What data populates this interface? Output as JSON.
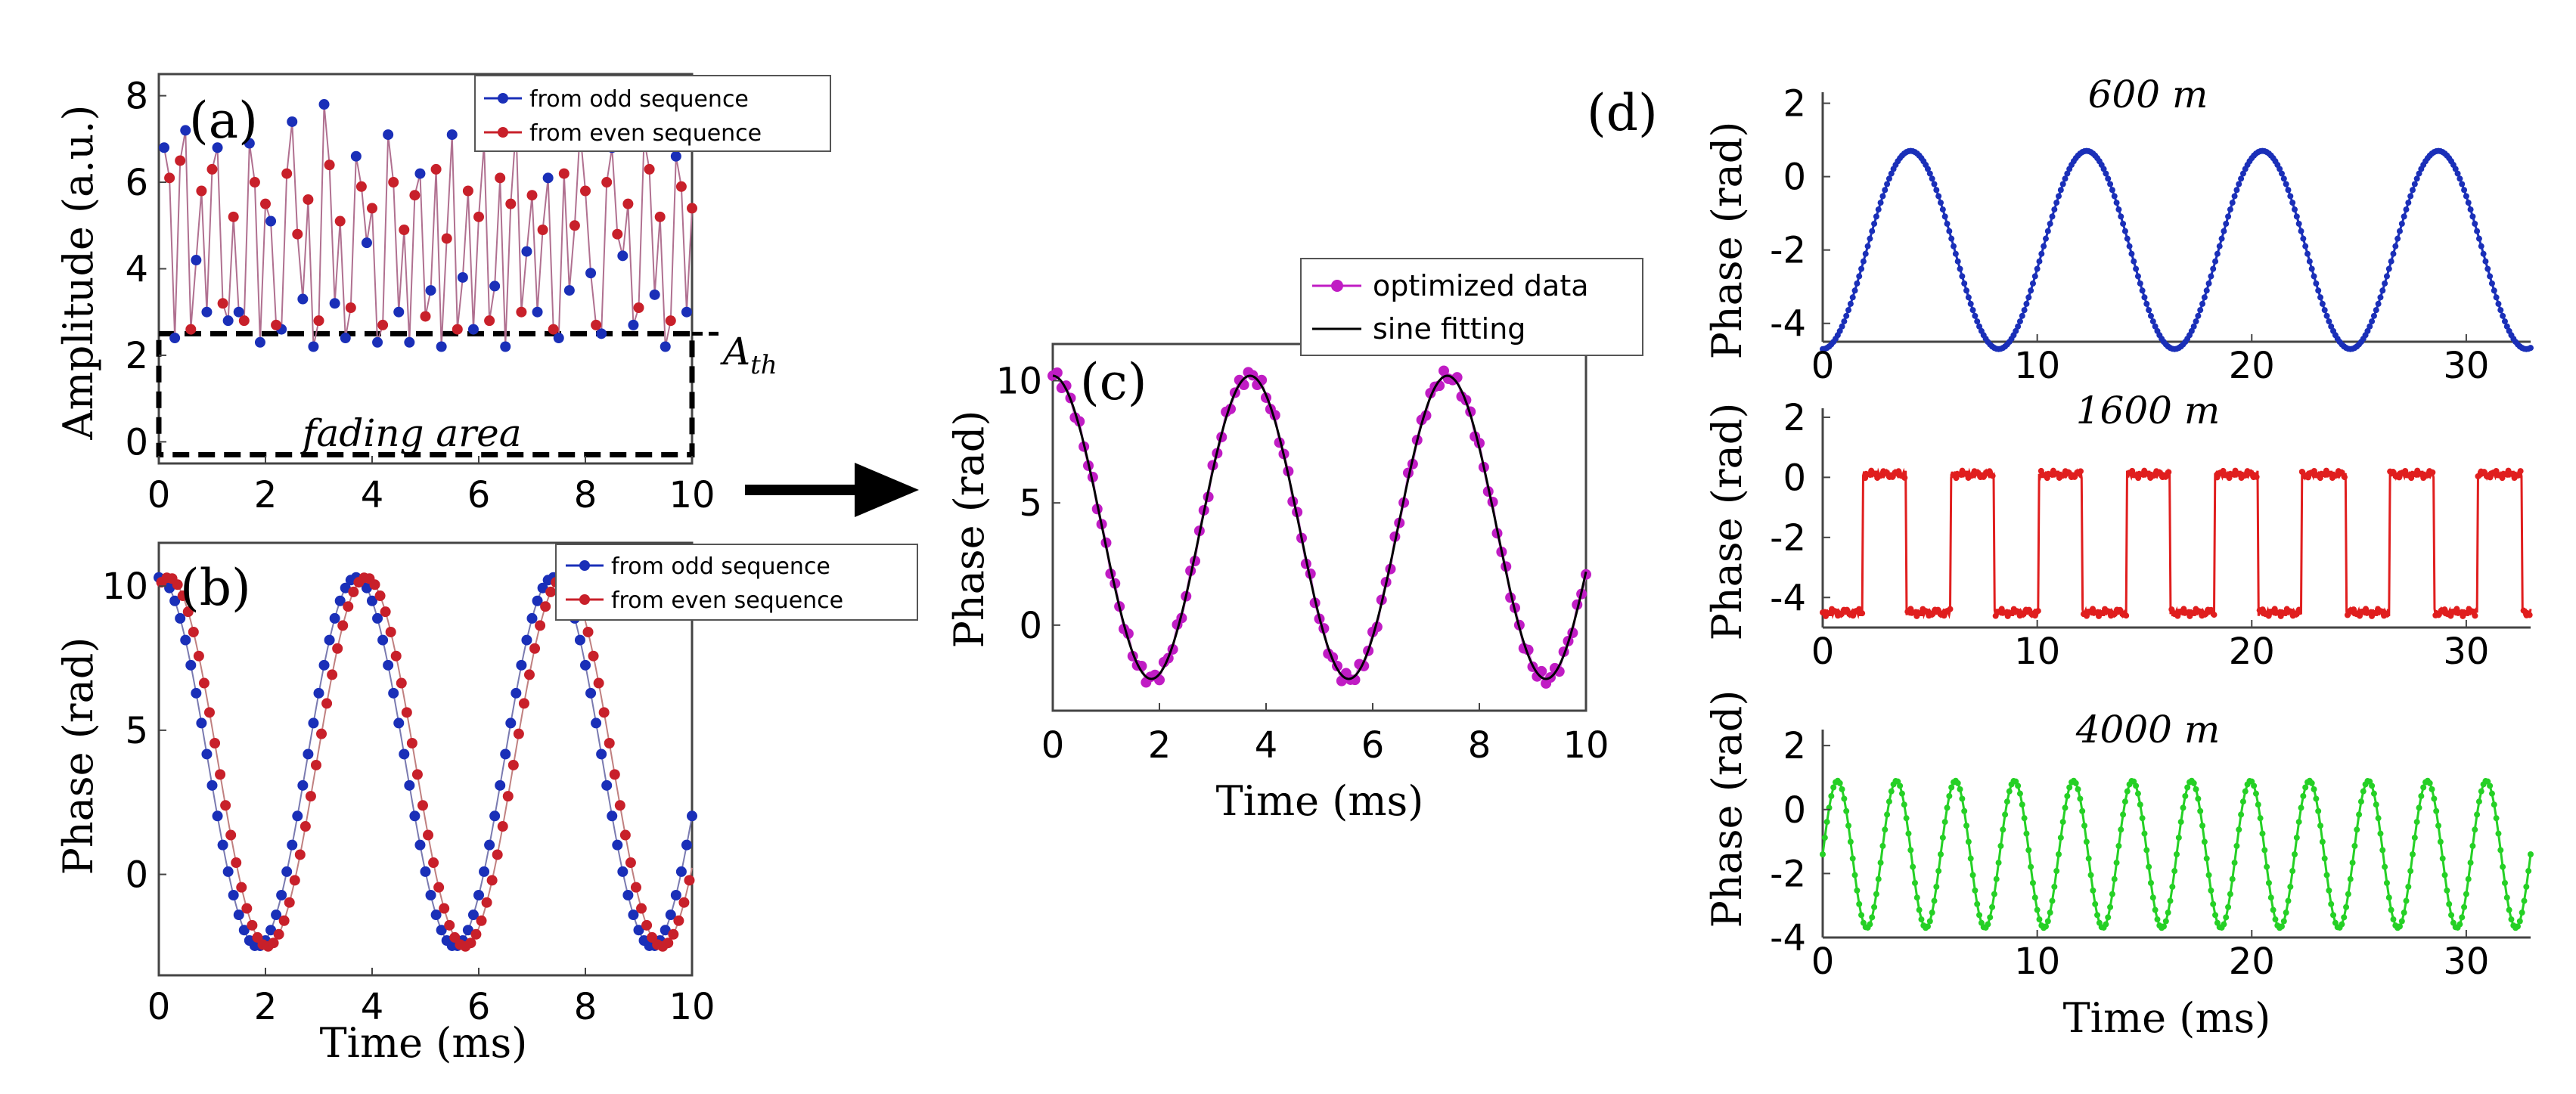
{
  "chart_data": [
    {
      "panel": "(a)",
      "type": "line",
      "xlabel": "",
      "ylabel": "Amplitude (a.u.)",
      "xlim": [
        0,
        10
      ],
      "ylim": [
        -0.5,
        8.5
      ],
      "xticks": [
        "0",
        "2",
        "4",
        "6",
        "8",
        "10"
      ],
      "yticks": [
        "0",
        "2",
        "4",
        "6",
        "8"
      ],
      "threshold": 2.5,
      "threshold_label": "A",
      "threshold_label_sub": "th",
      "region_label": "fading area",
      "series": [
        {
          "name": "from odd sequence",
          "color": "#1a2fb8",
          "x": [
            0.1,
            0.3,
            0.5,
            0.7,
            0.9,
            1.1,
            1.3,
            1.5,
            1.7,
            1.9,
            2.1,
            2.3,
            2.5,
            2.7,
            2.9,
            3.1,
            3.3,
            3.5,
            3.7,
            3.9,
            4.1,
            4.3,
            4.5,
            4.7,
            4.9,
            5.1,
            5.3,
            5.5,
            5.7,
            5.9,
            6.1,
            6.3,
            6.5,
            6.7,
            6.9,
            7.1,
            7.3,
            7.5,
            7.7,
            7.9,
            8.1,
            8.3,
            8.5,
            8.7,
            8.9,
            9.1,
            9.3,
            9.5,
            9.7,
            9.9
          ],
          "values": [
            6.8,
            2.4,
            7.2,
            4.2,
            3.0,
            6.8,
            2.8,
            3.0,
            6.9,
            2.3,
            5.1,
            2.6,
            7.4,
            3.3,
            2.2,
            7.8,
            3.2,
            2.4,
            6.6,
            4.6,
            2.3,
            7.1,
            3.0,
            2.3,
            6.2,
            3.5,
            2.2,
            7.1,
            3.8,
            2.6,
            6.9,
            3.6,
            2.2,
            7.3,
            4.4,
            3.0,
            6.1,
            2.4,
            3.5,
            7.2,
            3.9,
            2.5,
            6.8,
            4.3,
            2.7,
            7.0,
            3.4,
            2.2,
            6.6,
            3.0
          ]
        },
        {
          "name": "from even sequence",
          "color": "#c8202a",
          "x": [
            0.2,
            0.4,
            0.6,
            0.8,
            1.0,
            1.2,
            1.4,
            1.6,
            1.8,
            2.0,
            2.2,
            2.4,
            2.6,
            2.8,
            3.0,
            3.2,
            3.4,
            3.6,
            3.8,
            4.0,
            4.2,
            4.4,
            4.6,
            4.8,
            5.0,
            5.2,
            5.4,
            5.6,
            5.8,
            6.0,
            6.2,
            6.4,
            6.6,
            6.8,
            7.0,
            7.2,
            7.4,
            7.6,
            7.8,
            8.0,
            8.2,
            8.4,
            8.6,
            8.8,
            9.0,
            9.2,
            9.4,
            9.6,
            9.8,
            10.0
          ],
          "values": [
            6.1,
            6.5,
            2.6,
            5.8,
            6.3,
            3.2,
            5.2,
            2.8,
            6.0,
            5.5,
            2.7,
            6.2,
            4.8,
            5.6,
            2.8,
            6.4,
            5.1,
            3.1,
            5.9,
            5.4,
            2.7,
            6.0,
            4.9,
            5.7,
            2.9,
            6.3,
            4.7,
            2.6,
            5.8,
            5.2,
            2.8,
            6.1,
            5.5,
            3.0,
            5.7,
            4.9,
            2.6,
            6.2,
            5.0,
            5.8,
            2.7,
            6.0,
            4.8,
            5.5,
            3.1,
            6.3,
            5.2,
            2.8,
            5.9,
            5.4
          ]
        }
      ]
    },
    {
      "panel": "(b)",
      "type": "line",
      "xlabel": "Time (ms)",
      "ylabel": "Phase (rad)",
      "xlim": [
        0,
        10
      ],
      "ylim": [
        -3.5,
        11.5
      ],
      "xticks": [
        "0",
        "2",
        "4",
        "6",
        "8",
        "10"
      ],
      "yticks": [
        "0",
        "5",
        "10"
      ],
      "series": [
        {
          "name": "from odd sequence",
          "color": "#1a2fb8",
          "model": "sine",
          "amplitude": 6.4,
          "offset": 3.9,
          "period_ms": 3.7,
          "phase_deg": 90
        },
        {
          "name": "from even sequence",
          "color": "#c8202a",
          "model": "sine",
          "amplitude": 6.4,
          "offset": 3.9,
          "period_ms": 3.7,
          "phase_deg": 72
        }
      ]
    },
    {
      "panel": "(c)",
      "type": "line",
      "xlabel": "Time (ms)",
      "ylabel": "Phase (rad)",
      "xlim": [
        0,
        10
      ],
      "ylim": [
        -3.5,
        11.5
      ],
      "xticks": [
        "0",
        "2",
        "4",
        "6",
        "8",
        "10"
      ],
      "yticks": [
        "0",
        "5",
        "10"
      ],
      "series": [
        {
          "name": "optimized data",
          "color": "#c01cc4",
          "model": "sine",
          "amplitude": 6.2,
          "offset": 4.0,
          "period_ms": 3.7,
          "phase_deg": 90
        },
        {
          "name": "sine fitting",
          "color": "#000000",
          "model": "sine",
          "amplitude": 6.2,
          "offset": 4.0,
          "period_ms": 3.7,
          "phase_deg": 90
        }
      ]
    },
    {
      "panel": "(d)",
      "type": "line",
      "xlabel": "Time (ms)",
      "subplots": [
        {
          "title": "600 m",
          "ylabel": "Phase (rad)",
          "xlim": [
            0,
            33
          ],
          "ylim": [
            -4.5,
            2.3
          ],
          "xticks": [
            "0",
            "10",
            "20",
            "30"
          ],
          "yticks": [
            "2",
            "0",
            "-2",
            "-4"
          ],
          "color": "#1a2fb8",
          "waveform": "sine",
          "amplitude": 2.7,
          "offset": -2.0,
          "period_ms": 8.2,
          "phase_deg": -90
        },
        {
          "title": "1600 m",
          "ylabel": "Phase (rad)",
          "xlim": [
            0,
            33
          ],
          "ylim": [
            -5,
            2.3
          ],
          "xticks": [
            "0",
            "10",
            "20",
            "30"
          ],
          "yticks": [
            "2",
            "0",
            "-2",
            "-4"
          ],
          "color": "#e01e1e",
          "waveform": "square",
          "high": 0.1,
          "low": -4.5,
          "period_ms": 4.1,
          "duty": 0.5
        },
        {
          "title": "4000 m",
          "ylabel": "Phase (rad)",
          "xlim": [
            0,
            33
          ],
          "ylim": [
            -4,
            2.5
          ],
          "xticks": [
            "0",
            "10",
            "20",
            "30"
          ],
          "yticks": [
            "2",
            "0",
            "-2",
            "-4"
          ],
          "color": "#25d025",
          "waveform": "sine",
          "amplitude": 2.3,
          "offset": -1.4,
          "period_ms": 2.75,
          "phase_deg": 0
        }
      ]
    }
  ],
  "arrow": "right-arrow",
  "colors": {
    "odd": "#1a2fb8",
    "even": "#c8202a",
    "optimized": "#c01cc4",
    "d1": "#1a2fb8",
    "d2": "#e01e1e",
    "d3": "#25d025"
  }
}
